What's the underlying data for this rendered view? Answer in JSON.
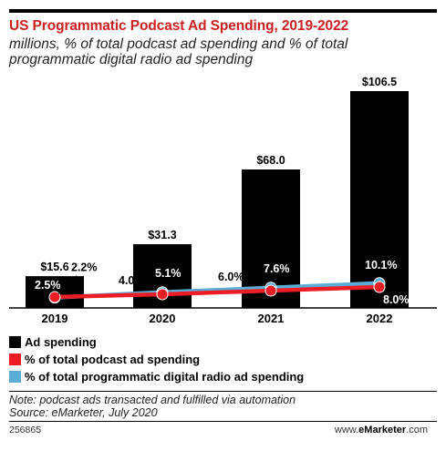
{
  "title": "US Programmatic Podcast Ad Spending, 2019-2022",
  "subtitle": "millions, % of total podcast ad spending and % of total programmatic digital radio ad spending",
  "chart_data": {
    "type": "bar",
    "categories": [
      "2019",
      "2020",
      "2021",
      "2022"
    ],
    "ylim": [
      0,
      106.5
    ],
    "grid": false,
    "series": [
      {
        "name": "Ad spending",
        "type": "bar",
        "values": [
          15.6,
          31.3,
          68.0,
          106.5
        ],
        "labels": [
          "$15.6",
          "$31.3",
          "$68.0",
          "$106.5"
        ],
        "color": "#000000"
      },
      {
        "name": "% of total podcast ad spending",
        "type": "line",
        "values": [
          2.5,
          4.0,
          6.0,
          8.0
        ],
        "labels": [
          "2.5%",
          "4.0%",
          "6.0%",
          "8.0%"
        ],
        "color": "#ee1c25"
      },
      {
        "name": "% of total programmatic digital radio ad spending",
        "type": "line",
        "values": [
          2.2,
          5.1,
          7.6,
          10.1
        ],
        "labels": [
          "2.2%",
          "5.1%",
          "7.6%",
          "10.1%"
        ],
        "color": "#5aaed6"
      }
    ],
    "legend_position": "bottom-left"
  },
  "note": "Note: podcast ads transacted and fulfilled via automation",
  "source": "Source: eMarketer, July 2020",
  "chart_id": "256865",
  "brand": {
    "prefix": "www.",
    "name": "eMarketer",
    "suffix": ".com"
  }
}
